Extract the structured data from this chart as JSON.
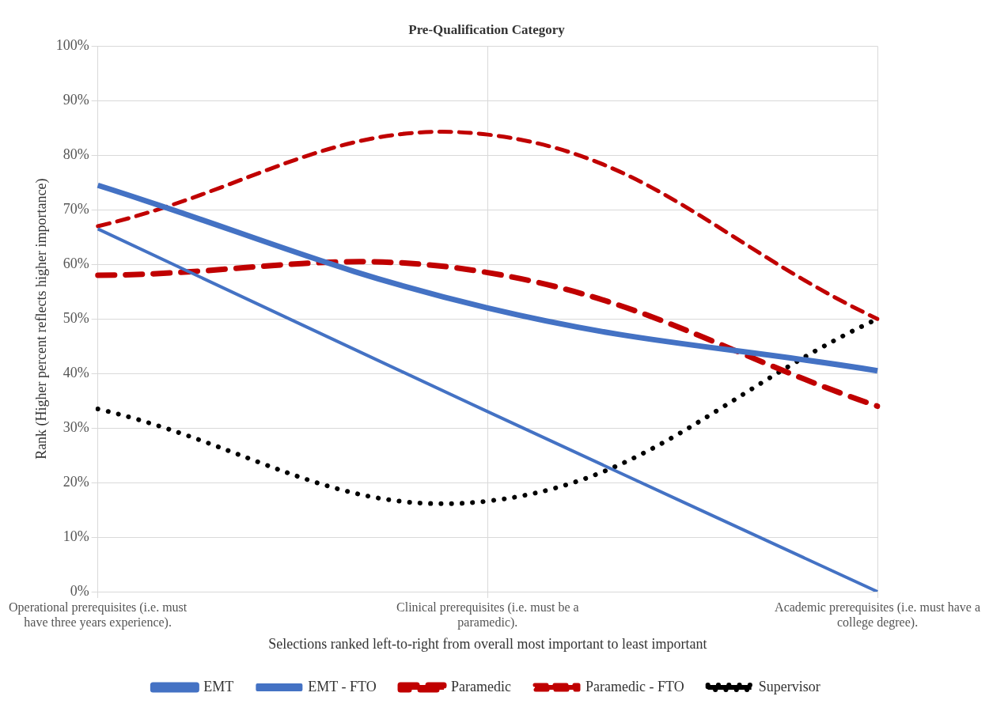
{
  "chart_data": {
    "type": "line",
    "title": "Pre-Qualification Category",
    "xlabel": "Selections ranked left-to-right from overall most important to least important",
    "ylabel": "Rank (Higher percent reflects higher importance)",
    "categories": [
      "Operational prerequisites (i.e. must have three years experience).",
      "Clinical prerequisites (i.e. must be a paramedic).",
      "Academic prerequisites (i.e. must have a college degree)."
    ],
    "series": [
      {
        "name": "EMT",
        "color": "#4472c4",
        "values": [
          74.5,
          52,
          40.5
        ],
        "line_style": "solid"
      },
      {
        "name": "EMT - FTO",
        "color": "#4472c4",
        "values": [
          66.5,
          33,
          0
        ],
        "line_style": "solid"
      },
      {
        "name": "Paramedic",
        "color": "#c00000",
        "values": [
          58,
          58.5,
          34
        ],
        "line_style": "dashed"
      },
      {
        "name": "Paramedic - FTO",
        "color": "#c00000",
        "values": [
          67,
          83.8,
          50
        ],
        "line_style": "dashed"
      },
      {
        "name": "Supervisor",
        "color": "#000000",
        "values": [
          33.5,
          16.6,
          50
        ],
        "line_style": "dotted"
      }
    ],
    "ylim": [
      0,
      100
    ],
    "yticks": [
      {
        "value": 0,
        "label": "0%"
      },
      {
        "value": 10,
        "label": "10%"
      },
      {
        "value": 20,
        "label": "20%"
      },
      {
        "value": 30,
        "label": "30%"
      },
      {
        "value": 40,
        "label": "40%"
      },
      {
        "value": 50,
        "label": "50%"
      },
      {
        "value": 60,
        "label": "60%"
      },
      {
        "value": 70,
        "label": "70%"
      },
      {
        "value": 80,
        "label": "80%"
      },
      {
        "value": 90,
        "label": "90%"
      },
      {
        "value": 100,
        "label": "100%"
      }
    ],
    "grid": true,
    "legend": "bottom",
    "marker": "none"
  }
}
